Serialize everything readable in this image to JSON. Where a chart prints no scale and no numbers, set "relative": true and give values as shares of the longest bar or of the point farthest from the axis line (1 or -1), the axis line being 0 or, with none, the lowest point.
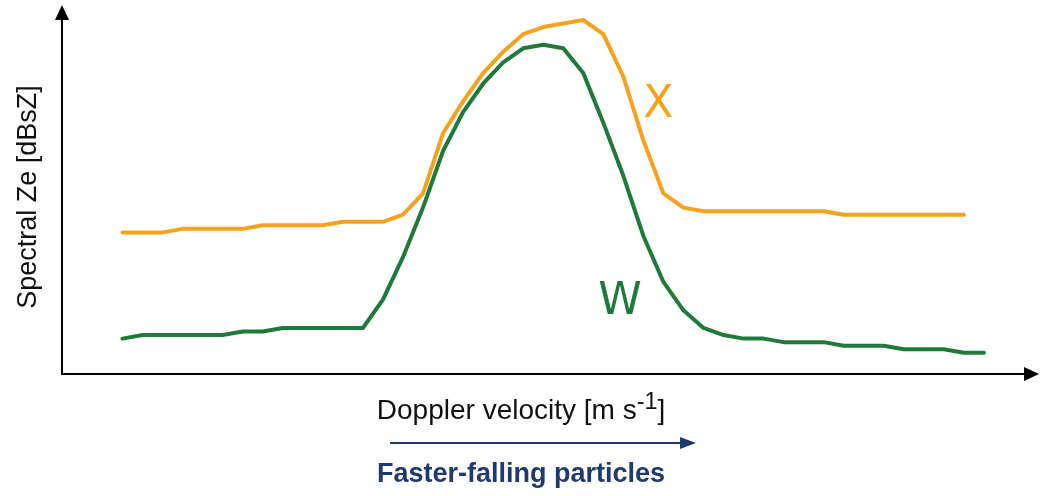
{
  "chart_data": {
    "type": "line",
    "relative": true,
    "xlabel": "Doppler velocity [m s$^{-1}$]",
    "ylabel": "Spectral Ze [dBsZ]",
    "categories": [
      null,
      null,
      null,
      null,
      null,
      null,
      null,
      null,
      null,
      null,
      null,
      null,
      null,
      null,
      null,
      null,
      null,
      null,
      null,
      null,
      null,
      null,
      null,
      null,
      null,
      null,
      null,
      null,
      null,
      null,
      null,
      null,
      null,
      null,
      null,
      null,
      null,
      null,
      null,
      null,
      null,
      null,
      null,
      null,
      null,
      null,
      null,
      null,
      null
    ],
    "series": [
      {
        "name": "X",
        "color": "#f5a21f",
        "values": [
          null,
          null,
          null,
          0.4,
          0.4,
          0.4,
          0.41,
          0.41,
          0.41,
          0.41,
          0.42,
          0.42,
          0.42,
          0.42,
          0.43,
          0.43,
          0.43,
          0.45,
          0.51,
          0.68,
          0.77,
          0.85,
          0.91,
          0.96,
          0.98,
          0.99,
          1.0,
          0.96,
          0.84,
          0.66,
          0.51,
          0.47,
          0.46,
          0.46,
          0.46,
          0.46,
          0.46,
          0.46,
          0.46,
          0.45,
          0.45,
          0.45,
          0.45,
          0.45,
          0.45,
          0.45,
          null,
          null,
          null
        ]
      },
      {
        "name": "W",
        "color": "#1f7a3a",
        "values": [
          null,
          null,
          null,
          0.1,
          0.11,
          0.11,
          0.11,
          0.11,
          0.11,
          0.12,
          0.12,
          0.13,
          0.13,
          0.13,
          0.13,
          0.13,
          0.21,
          0.33,
          0.47,
          0.63,
          0.74,
          0.82,
          0.88,
          0.92,
          0.93,
          0.92,
          0.85,
          0.71,
          0.56,
          0.39,
          0.26,
          0.18,
          0.13,
          0.11,
          0.1,
          0.1,
          0.09,
          0.09,
          0.09,
          0.08,
          0.08,
          0.08,
          0.07,
          0.07,
          0.07,
          0.06,
          0.06,
          null,
          null
        ]
      }
    ],
    "annotations": [
      "Faster-falling particles"
    ],
    "marker": "none",
    "line_style": "solid",
    "grid": false,
    "legend": false,
    "tick_labels": false
  }
}
